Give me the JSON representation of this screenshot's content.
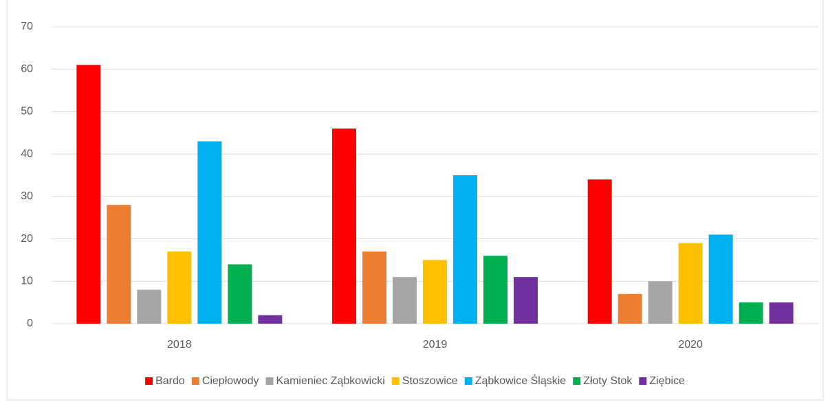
{
  "chart_data": {
    "type": "bar",
    "categories": [
      "2018",
      "2019",
      "2020"
    ],
    "series": [
      {
        "name": "Bardo",
        "color": "#ff0000",
        "values": [
          61,
          46,
          34
        ]
      },
      {
        "name": "Ciepłowody",
        "color": "#ed7d31",
        "values": [
          28,
          17,
          7
        ]
      },
      {
        "name": "Kamieniec Ząbkowicki",
        "color": "#a5a5a5",
        "values": [
          8,
          11,
          10
        ]
      },
      {
        "name": "Stoszowice",
        "color": "#ffc000",
        "values": [
          17,
          15,
          19
        ]
      },
      {
        "name": "Ząbkowice Śląskie",
        "color": "#00b0f0",
        "values": [
          43,
          35,
          21
        ]
      },
      {
        "name": "Złoty Stok",
        "color": "#00b050",
        "values": [
          14,
          16,
          5
        ]
      },
      {
        "name": "Ziębice",
        "color": "#7030a0",
        "values": [
          2,
          11,
          5
        ]
      }
    ],
    "ylim": [
      0,
      70
    ],
    "yticks": [
      0,
      10,
      20,
      30,
      40,
      50,
      60,
      70
    ],
    "grid": true,
    "legend": "bottom"
  }
}
